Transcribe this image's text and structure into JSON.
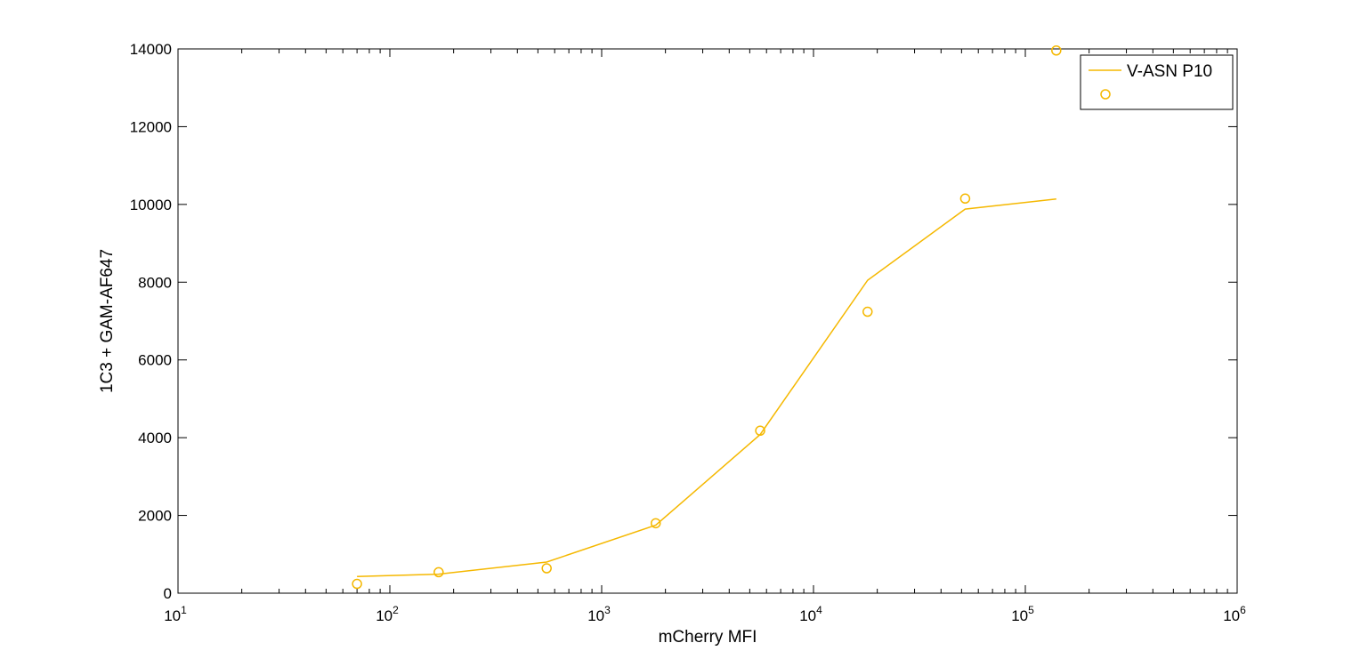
{
  "chart_data": {
    "type": "line",
    "xscale": "log",
    "xlabel": "mCherry MFI",
    "ylabel": "1C3 + GAM-AF647",
    "xlim": [
      10,
      1000000
    ],
    "ylim": [
      0,
      14000
    ],
    "grid": false,
    "legend_position": "top-right",
    "x_ticks": [
      {
        "value": 10,
        "base": "10",
        "exp": "1"
      },
      {
        "value": 100,
        "base": "10",
        "exp": "2"
      },
      {
        "value": 1000,
        "base": "10",
        "exp": "3"
      },
      {
        "value": 10000,
        "base": "10",
        "exp": "4"
      },
      {
        "value": 100000,
        "base": "10",
        "exp": "5"
      },
      {
        "value": 1000000,
        "base": "10",
        "exp": "6"
      }
    ],
    "y_ticks": [
      {
        "value": 0,
        "label": "0"
      },
      {
        "value": 2000,
        "label": "2000"
      },
      {
        "value": 4000,
        "label": "4000"
      },
      {
        "value": 6000,
        "label": "6000"
      },
      {
        "value": 8000,
        "label": "8000"
      },
      {
        "value": 10000,
        "label": "10000"
      },
      {
        "value": 12000,
        "label": "12000"
      },
      {
        "value": 14000,
        "label": "14000"
      }
    ],
    "series": [
      {
        "name": "V-ASN P10",
        "style": "line",
        "color": "#F5B800",
        "x": [
          70,
          170,
          550,
          1800,
          5600,
          18000,
          52000,
          140000
        ],
        "y": [
          430,
          490,
          800,
          1750,
          4080,
          8050,
          9880,
          10140
        ]
      },
      {
        "style": "marker-circle",
        "color": "#F5B800",
        "x": [
          70,
          170,
          550,
          1800,
          5600,
          18000,
          52000,
          140000
        ],
        "y": [
          240,
          540,
          640,
          1800,
          4180,
          7240,
          10150,
          13960
        ]
      }
    ]
  }
}
